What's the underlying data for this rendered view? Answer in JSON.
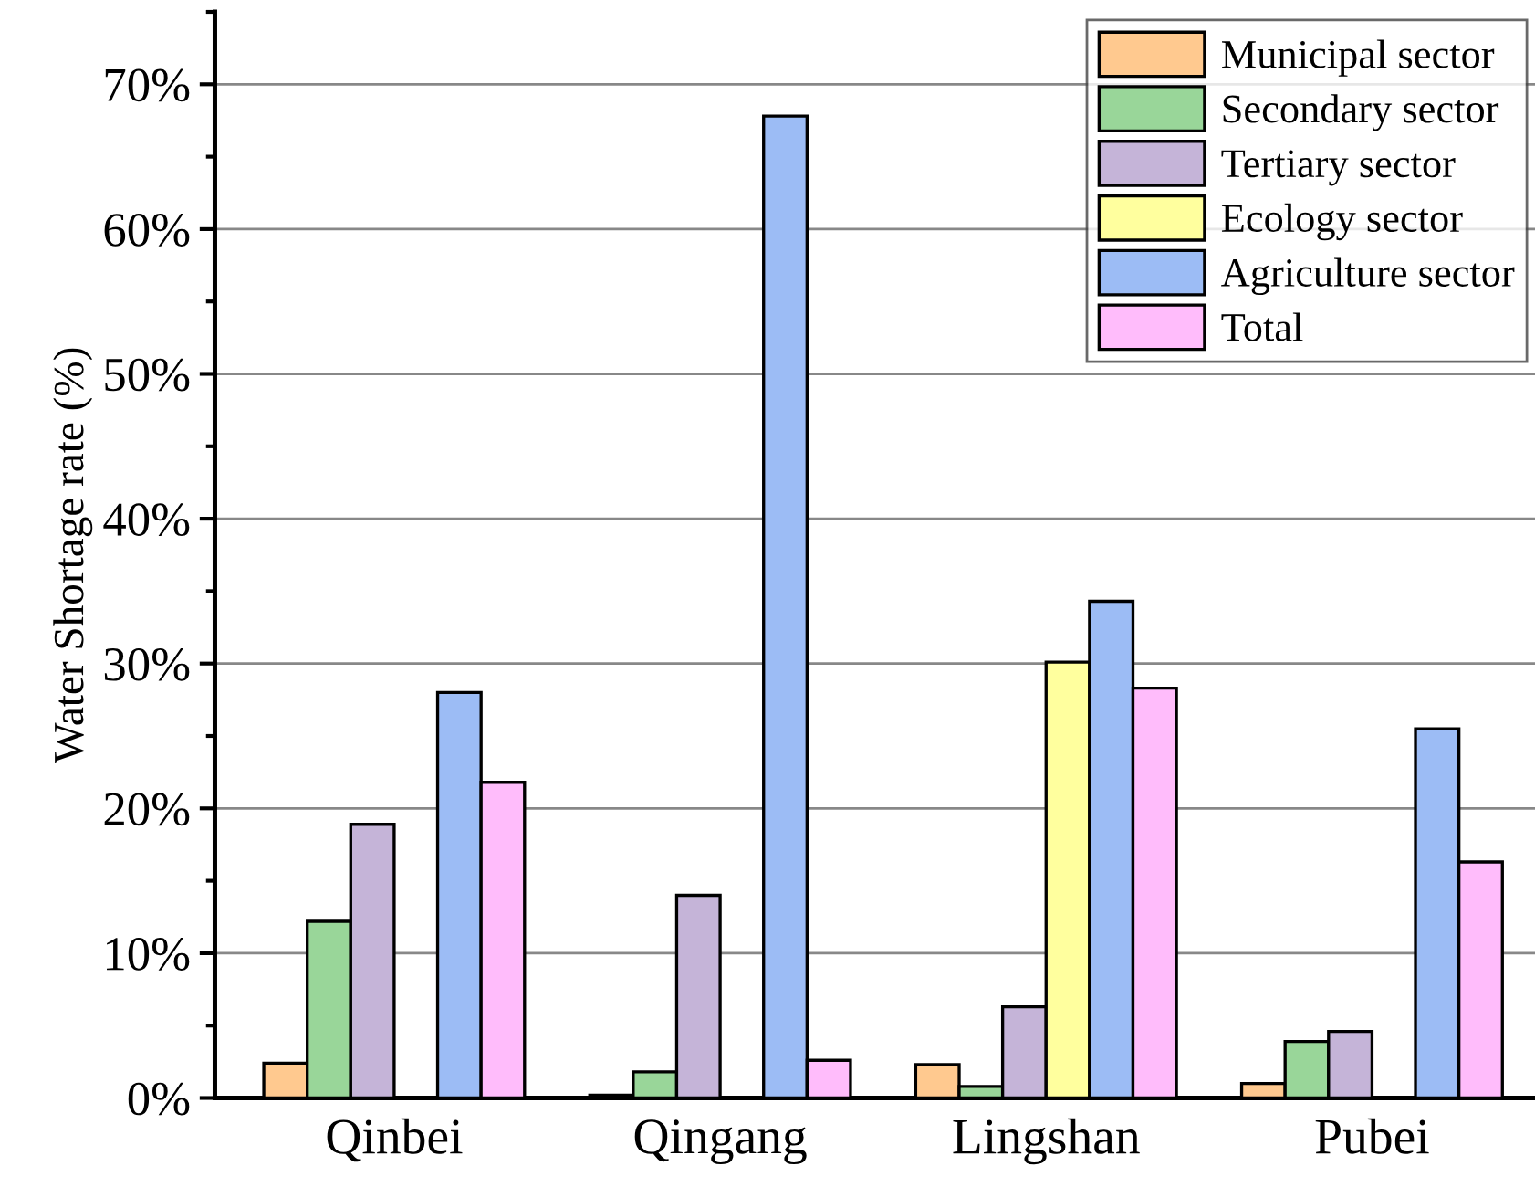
{
  "chart_data": {
    "type": "bar",
    "ylabel": "Water Shortage rate (%)",
    "categories": [
      "Qinbei",
      "Qingang",
      "Lingshan",
      "Pubei"
    ],
    "series": [
      {
        "name": "Municipal sector",
        "color": "#ffc98f",
        "values": [
          2.4,
          0.2,
          2.3,
          1.0
        ]
      },
      {
        "name": "Secondary sector",
        "color": "#99d699",
        "values": [
          12.2,
          1.8,
          0.8,
          3.9
        ]
      },
      {
        "name": "Tertiary sector",
        "color": "#c5b4d8",
        "values": [
          18.9,
          14.0,
          6.3,
          4.6
        ]
      },
      {
        "name": "Ecology sector",
        "color": "#ffff9e",
        "values": [
          null,
          null,
          30.1,
          null
        ]
      },
      {
        "name": "Agriculture sector",
        "color": "#9cbcf5",
        "values": [
          28.0,
          67.8,
          34.3,
          25.5
        ]
      },
      {
        "name": "Total",
        "color": "#ffbcfb",
        "values": [
          21.8,
          2.6,
          28.3,
          16.3
        ]
      }
    ],
    "ylim": [
      0,
      75
    ],
    "yticks": [
      {
        "value": 0,
        "label": "0%"
      },
      {
        "value": 10,
        "label": "10%"
      },
      {
        "value": 20,
        "label": "20%"
      },
      {
        "value": 30,
        "label": "30%"
      },
      {
        "value": 40,
        "label": "40%"
      },
      {
        "value": 50,
        "label": "50%"
      },
      {
        "value": 60,
        "label": "60%"
      },
      {
        "value": 70,
        "label": "70%"
      }
    ],
    "grid": "y",
    "legend": "top right"
  }
}
